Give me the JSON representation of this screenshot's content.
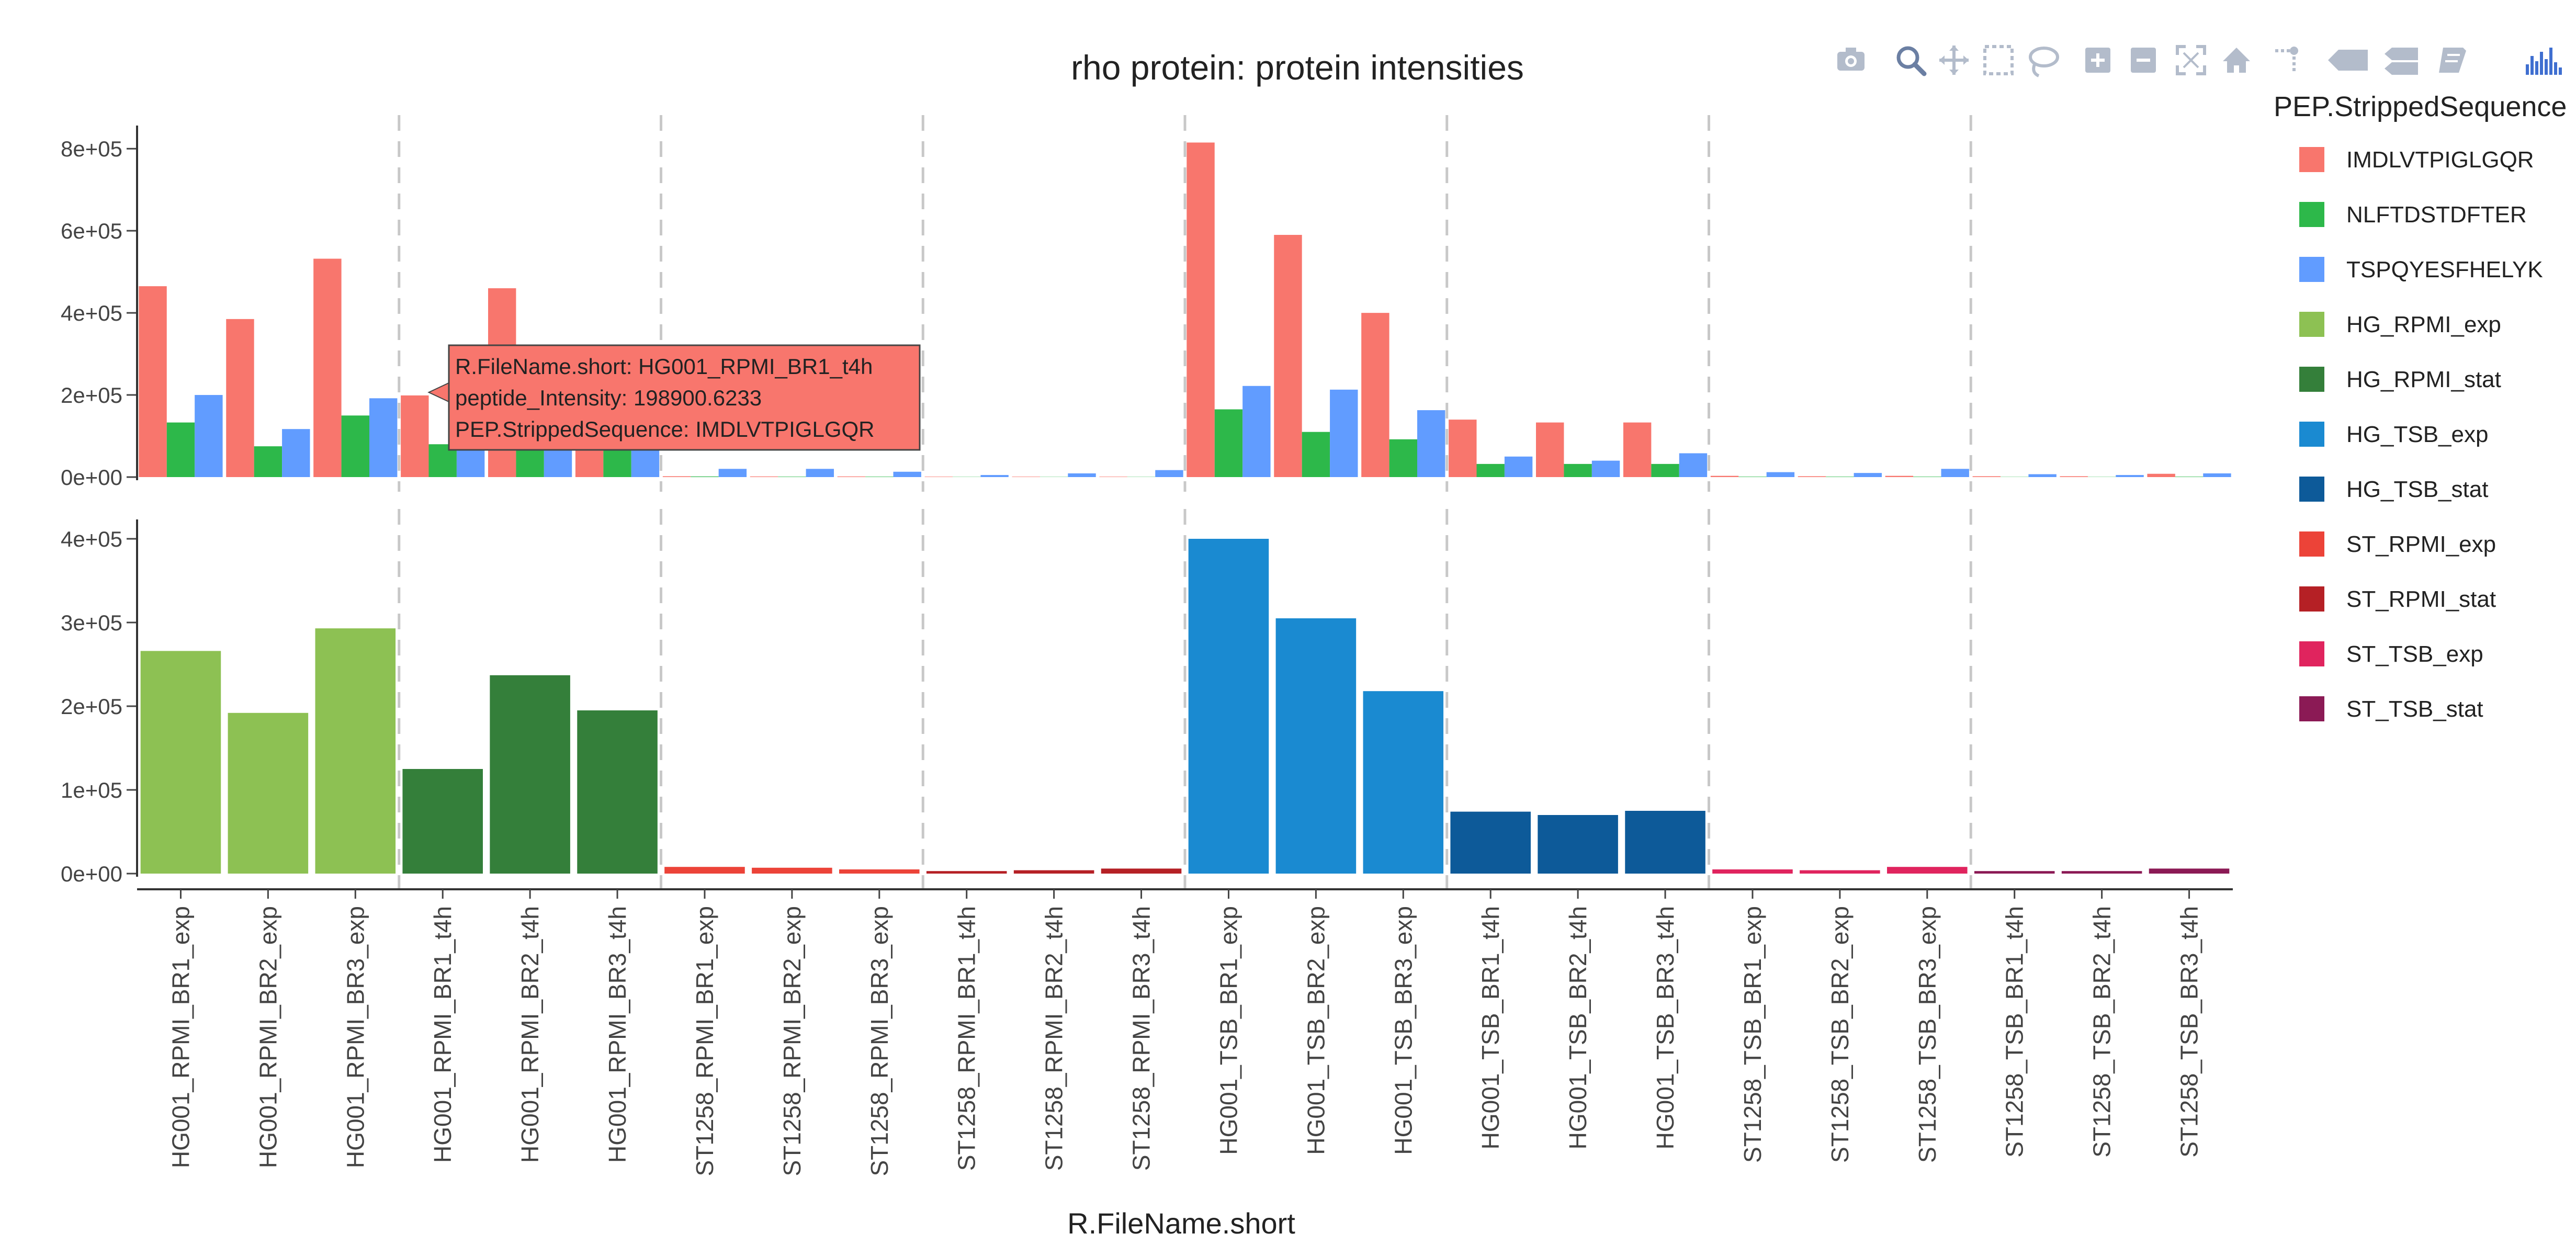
{
  "modebar": {
    "buttons": [
      {
        "name": "camera-icon"
      },
      {
        "name": "zoom-icon"
      },
      {
        "name": "pan-icon"
      },
      {
        "name": "box-select-icon"
      },
      {
        "name": "lasso-select-icon"
      },
      {
        "name": "zoom-in-icon"
      },
      {
        "name": "zoom-out-icon"
      },
      {
        "name": "autoscale-icon"
      },
      {
        "name": "reset-axes-icon"
      },
      {
        "name": "spike-lines-icon"
      },
      {
        "name": "hover-closest-icon"
      },
      {
        "name": "hover-compare-icon"
      },
      {
        "name": "edit-chart-icon"
      },
      {
        "name": "plotly-logo-icon"
      }
    ],
    "icon_color": "#b3bccb",
    "active_color": "#6b7fa3",
    "logo_color": "#3f6fd0"
  },
  "chart_data": {
    "type": "bar",
    "title": "rho protein: protein intensities",
    "xlabel": "R.FileName.short",
    "ylabel": "",
    "categories": [
      "HG001_RPMI_BR1_exp",
      "HG001_RPMI_BR2_exp",
      "HG001_RPMI_BR3_exp",
      "HG001_RPMI_BR1_t4h",
      "HG001_RPMI_BR2_t4h",
      "HG001_RPMI_BR3_t4h",
      "ST1258_RPMI_BR1_exp",
      "ST1258_RPMI_BR2_exp",
      "ST1258_RPMI_BR3_exp",
      "ST1258_RPMI_BR1_t4h",
      "ST1258_RPMI_BR2_t4h",
      "ST1258_RPMI_BR3_t4h",
      "HG001_TSB_BR1_exp",
      "HG001_TSB_BR2_exp",
      "HG001_TSB_BR3_exp",
      "HG001_TSB_BR1_t4h",
      "HG001_TSB_BR2_t4h",
      "HG001_TSB_BR3_t4h",
      "ST1258_TSB_BR1_exp",
      "ST1258_TSB_BR2_exp",
      "ST1258_TSB_BR3_exp",
      "ST1258_TSB_BR1_t4h",
      "ST1258_TSB_BR2_t4h",
      "ST1258_TSB_BR3_t4h"
    ],
    "group_dividers_after": [
      3,
      6,
      9,
      12,
      15,
      18,
      21
    ],
    "legend": {
      "title": "PEP.StrippedSequence",
      "placement": "right",
      "entries": [
        {
          "name": "IMDLVTPIGLGQR",
          "color": "#f8766d"
        },
        {
          "name": "NLFTDSTDFTER",
          "color": "#2db84a"
        },
        {
          "name": "TSPQYESFHELYK",
          "color": "#619cff"
        },
        {
          "name": "HG_RPMI_exp",
          "color": "#8dc153"
        },
        {
          "name": "HG_RPMI_stat",
          "color": "#347f3a"
        },
        {
          "name": "HG_TSB_exp",
          "color": "#1a8ad1"
        },
        {
          "name": "HG_TSB_stat",
          "color": "#0d5a99"
        },
        {
          "name": "ST_RPMI_exp",
          "color": "#ec4338"
        },
        {
          "name": "ST_RPMI_stat",
          "color": "#b52025"
        },
        {
          "name": "ST_TSB_exp",
          "color": "#e0245e"
        },
        {
          "name": "ST_TSB_stat",
          "color": "#8b1a55"
        }
      ]
    },
    "top_panel": {
      "ylim": [
        0,
        850000
      ],
      "yticks": [
        {
          "value": 0,
          "label": "0e+00"
        },
        {
          "value": 200000,
          "label": "2e+05"
        },
        {
          "value": 400000,
          "label": "4e+05"
        },
        {
          "value": 600000,
          "label": "6e+05"
        },
        {
          "value": 800000,
          "label": "8e+05"
        }
      ],
      "series": [
        {
          "name": "IMDLVTPIGLGQR",
          "color": "#f8766d",
          "values": [
            465000,
            385000,
            532000,
            198900,
            460000,
            205000,
            2000,
            1500,
            1500,
            1000,
            1000,
            1000,
            815000,
            590000,
            400000,
            140000,
            133000,
            133000,
            3000,
            2000,
            3000,
            2000,
            2000,
            8000
          ]
        },
        {
          "name": "NLFTDSTDFTER",
          "color": "#2db84a",
          "values": [
            133000,
            75000,
            150000,
            80000,
            85000,
            85000,
            1500,
            1000,
            1000,
            500,
            500,
            500,
            165000,
            110000,
            92000,
            32000,
            32000,
            32000,
            1000,
            1000,
            1000,
            500,
            500,
            1000
          ]
        },
        {
          "name": "TSPQYESFHELYK",
          "color": "#619cff",
          "values": [
            200000,
            117000,
            192000,
            90000,
            90000,
            90000,
            20000,
            20000,
            13000,
            5000,
            9000,
            17000,
            222000,
            213000,
            163000,
            50000,
            40000,
            58000,
            12000,
            10000,
            20000,
            7000,
            5000,
            9000
          ]
        }
      ]
    },
    "bottom_panel": {
      "ylim": [
        0,
        420000
      ],
      "yticks": [
        {
          "value": 0,
          "label": "0e+00"
        },
        {
          "value": 100000,
          "label": "1e+05"
        },
        {
          "value": 200000,
          "label": "2e+05"
        },
        {
          "value": 300000,
          "label": "3e+05"
        },
        {
          "value": 400000,
          "label": "4e+05"
        }
      ],
      "bars": [
        {
          "group": "HG_RPMI_exp",
          "value": 266000
        },
        {
          "group": "HG_RPMI_exp",
          "value": 192000
        },
        {
          "group": "HG_RPMI_exp",
          "value": 293000
        },
        {
          "group": "HG_RPMI_stat",
          "value": 125000
        },
        {
          "group": "HG_RPMI_stat",
          "value": 237000
        },
        {
          "group": "HG_RPMI_stat",
          "value": 195000
        },
        {
          "group": "ST_RPMI_exp",
          "value": 8000
        },
        {
          "group": "ST_RPMI_exp",
          "value": 7000
        },
        {
          "group": "ST_RPMI_exp",
          "value": 5000
        },
        {
          "group": "ST_RPMI_stat",
          "value": 3000
        },
        {
          "group": "ST_RPMI_stat",
          "value": 4000
        },
        {
          "group": "ST_RPMI_stat",
          "value": 6000
        },
        {
          "group": "HG_TSB_exp",
          "value": 400000
        },
        {
          "group": "HG_TSB_exp",
          "value": 305000
        },
        {
          "group": "HG_TSB_exp",
          "value": 218000
        },
        {
          "group": "HG_TSB_stat",
          "value": 74000
        },
        {
          "group": "HG_TSB_stat",
          "value": 70000
        },
        {
          "group": "HG_TSB_stat",
          "value": 75000
        },
        {
          "group": "ST_TSB_exp",
          "value": 5000
        },
        {
          "group": "ST_TSB_exp",
          "value": 4000
        },
        {
          "group": "ST_TSB_exp",
          "value": 8000
        },
        {
          "group": "ST_TSB_stat",
          "value": 3000
        },
        {
          "group": "ST_TSB_stat",
          "value": 3000
        },
        {
          "group": "ST_TSB_stat",
          "value": 6000
        }
      ]
    },
    "tooltip": {
      "lines": [
        "R.FileName.short: HG001_RPMI_BR1_t4h",
        "peptide_Intensity: 198900.6233",
        "PEP.StrippedSequence: IMDLVTPIGLGQR"
      ],
      "category_index": 3,
      "series_index": 0,
      "color": "#f8766d"
    }
  }
}
